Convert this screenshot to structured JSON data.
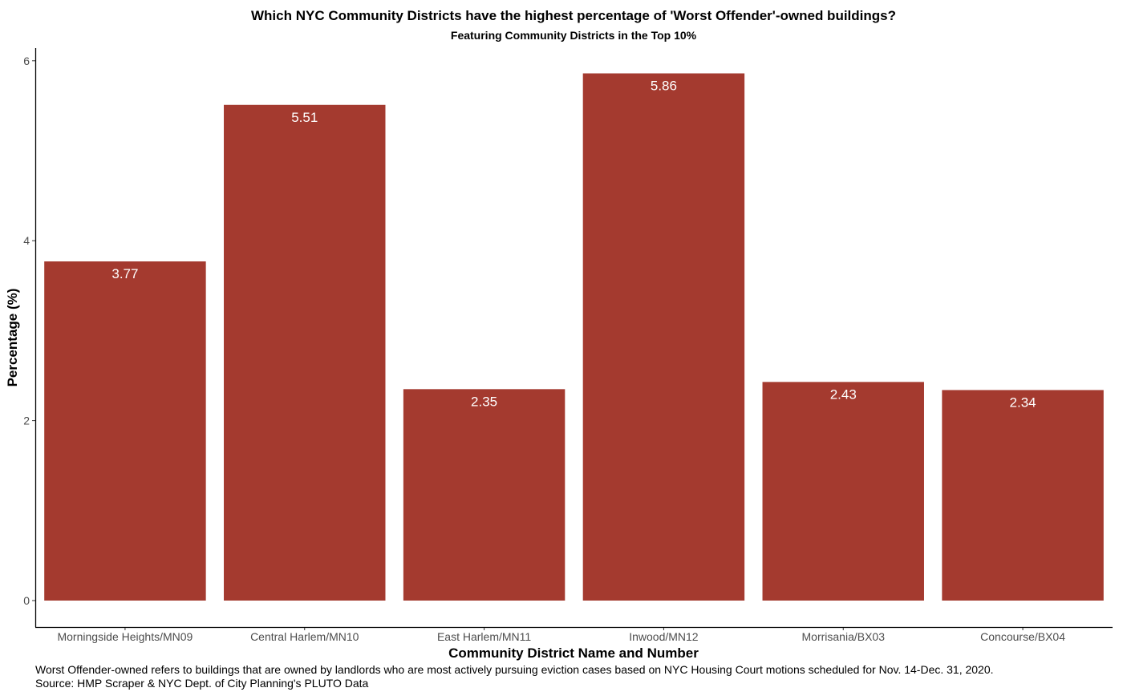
{
  "chart_data": {
    "type": "bar",
    "title": "Which NYC Community Districts have the highest percentage of 'Worst Offender'-owned buildings?",
    "subtitle": "Featuring Community Districts in the Top 10%",
    "xlabel": "Community District Name and Number",
    "ylabel": "Percentage (%)",
    "categories": [
      "Morningside Heights/MN09",
      "Central Harlem/MN10",
      "East Harlem/MN11",
      "Inwood/MN12",
      "Morrisania/BX03",
      "Concourse/BX04"
    ],
    "values": [
      3.77,
      5.51,
      2.35,
      5.86,
      2.43,
      2.34
    ],
    "data_labels": [
      "3.77",
      "5.51",
      "2.35",
      "5.86",
      "2.43",
      "2.34"
    ],
    "yticks": [
      0,
      2,
      4,
      6
    ],
    "ylim": [
      0,
      6.15
    ],
    "grid": false,
    "legend": "none",
    "bar_color": "#a43a2f",
    "label_color": "#ffffff"
  },
  "caption": {
    "line1": "Worst Offender-owned refers to buildings that are owned by landlords who are most actively pursuing eviction cases based on NYC Housing Court motions scheduled for Nov. 14-Dec. 31, 2020.",
    "line2": "Source: HMP Scraper & NYC Dept. of City Planning's PLUTO Data"
  }
}
